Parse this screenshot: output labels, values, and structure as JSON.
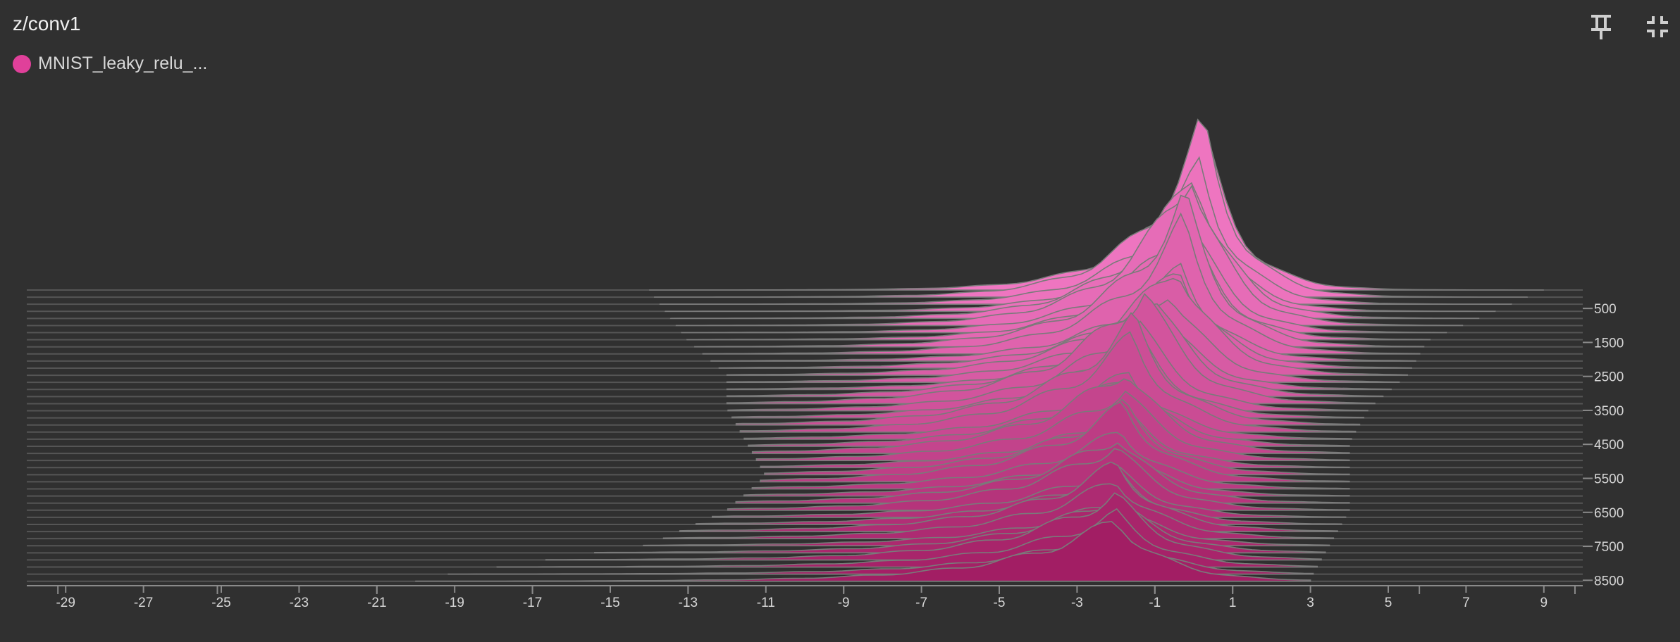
{
  "card": {
    "title": "z/conv1",
    "legend_label": "MNIST_leaky_relu_..."
  },
  "icons": {
    "pin": "pin-icon",
    "collapse": "fullscreen-exit-icon"
  },
  "colors": {
    "background": "#303030",
    "series_front": "#a21e64",
    "series_back": "#f077c2",
    "ridge_line": "#7a7a7a",
    "axis": "#8a8a8a"
  },
  "chart_data": {
    "type": "area",
    "subtype": "histogram-offset",
    "series": [
      {
        "name": "MNIST_leaky_relu_..."
      }
    ],
    "x_ticks": [
      -29,
      -27,
      -25,
      -23,
      -21,
      -19,
      -17,
      -15,
      -13,
      -11,
      -9,
      -7,
      -5,
      -3,
      -1,
      1,
      3,
      5,
      7,
      9
    ],
    "xlim": [
      -30,
      10
    ],
    "step_ticks": [
      500,
      1500,
      2500,
      3500,
      4500,
      5500,
      6500,
      7500,
      8500
    ],
    "step_range": [
      0,
      8700
    ],
    "x_grid": [
      -29.2,
      -25.1,
      -21,
      -17,
      -13,
      -9,
      -5,
      -1,
      1,
      5.8,
      9.8
    ],
    "histograms": {
      "step": [
        0,
        1500,
        2500,
        3500,
        4500,
        5500,
        6500,
        7500,
        8500
      ],
      "peak_x": [
        0.3,
        -0.2,
        -0.4,
        -1.4,
        -1.7,
        -1.8,
        -2.0,
        -2.0,
        -2.0
      ],
      "peak_density": [
        0.95,
        0.87,
        0.62,
        0.66,
        0.5,
        0.42,
        0.38,
        0.36,
        0.36
      ],
      "spread_left": [
        2.6,
        3.0,
        3.4,
        3.6,
        3.8,
        4.0,
        4.1,
        4.2,
        4.3
      ],
      "spread_right": [
        1.5,
        1.6,
        1.7,
        1.8,
        1.9,
        1.9,
        1.9,
        2.0,
        2.0
      ],
      "tail_left": [
        -14,
        -13,
        -12,
        -12,
        -11.5,
        -11,
        -12,
        -14,
        -20
      ],
      "tail_right": [
        9,
        6,
        5.5,
        4.5,
        4,
        4,
        4,
        3.5,
        3
      ]
    }
  }
}
